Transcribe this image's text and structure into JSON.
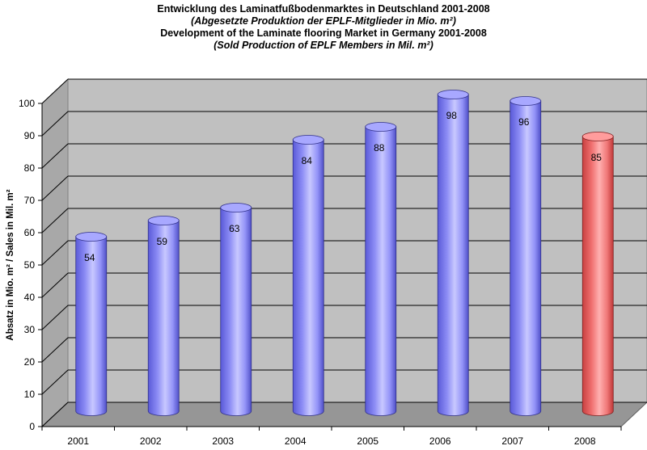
{
  "titles": {
    "line1": "Entwicklung des Laminatfußbodenmarktes in Deutschland 2001-2008",
    "line2": "(Abgesetzte Produktion der EPLF-Mitglieder in Mio. m²)",
    "line3": "Development of the Laminate flooring Market in Germany 2001-2008",
    "line4": "(Sold Production of EPLF Members in Mil. m²)"
  },
  "chart_data": {
    "type": "bar",
    "style": "3d-cylinder",
    "title": "Entwicklung des Laminatfußbodenmarktes in Deutschland 2001-2008",
    "xlabel": "",
    "ylabel": "Absatz in Mio. m² / Sales in Mil. m²",
    "categories": [
      "2001",
      "2002",
      "2003",
      "2004",
      "2005",
      "2006",
      "2007",
      "2008"
    ],
    "values": [
      54,
      59,
      63,
      84,
      88,
      98,
      96,
      85
    ],
    "data_labels": [
      "54",
      "59",
      "63",
      "84",
      "88",
      "98",
      "96",
      "85"
    ],
    "ylim": [
      0,
      100
    ],
    "yticks": [
      "0",
      "10",
      "20",
      "30",
      "40",
      "50",
      "60",
      "70",
      "80",
      "90",
      "100"
    ],
    "grid": true,
    "legend": "none",
    "colors": {
      "bar": "#9999ff",
      "highlight_bar": "#ff7f7f",
      "wall": "#c0c0c0",
      "floor": "#969696"
    },
    "highlight_index": 7
  }
}
